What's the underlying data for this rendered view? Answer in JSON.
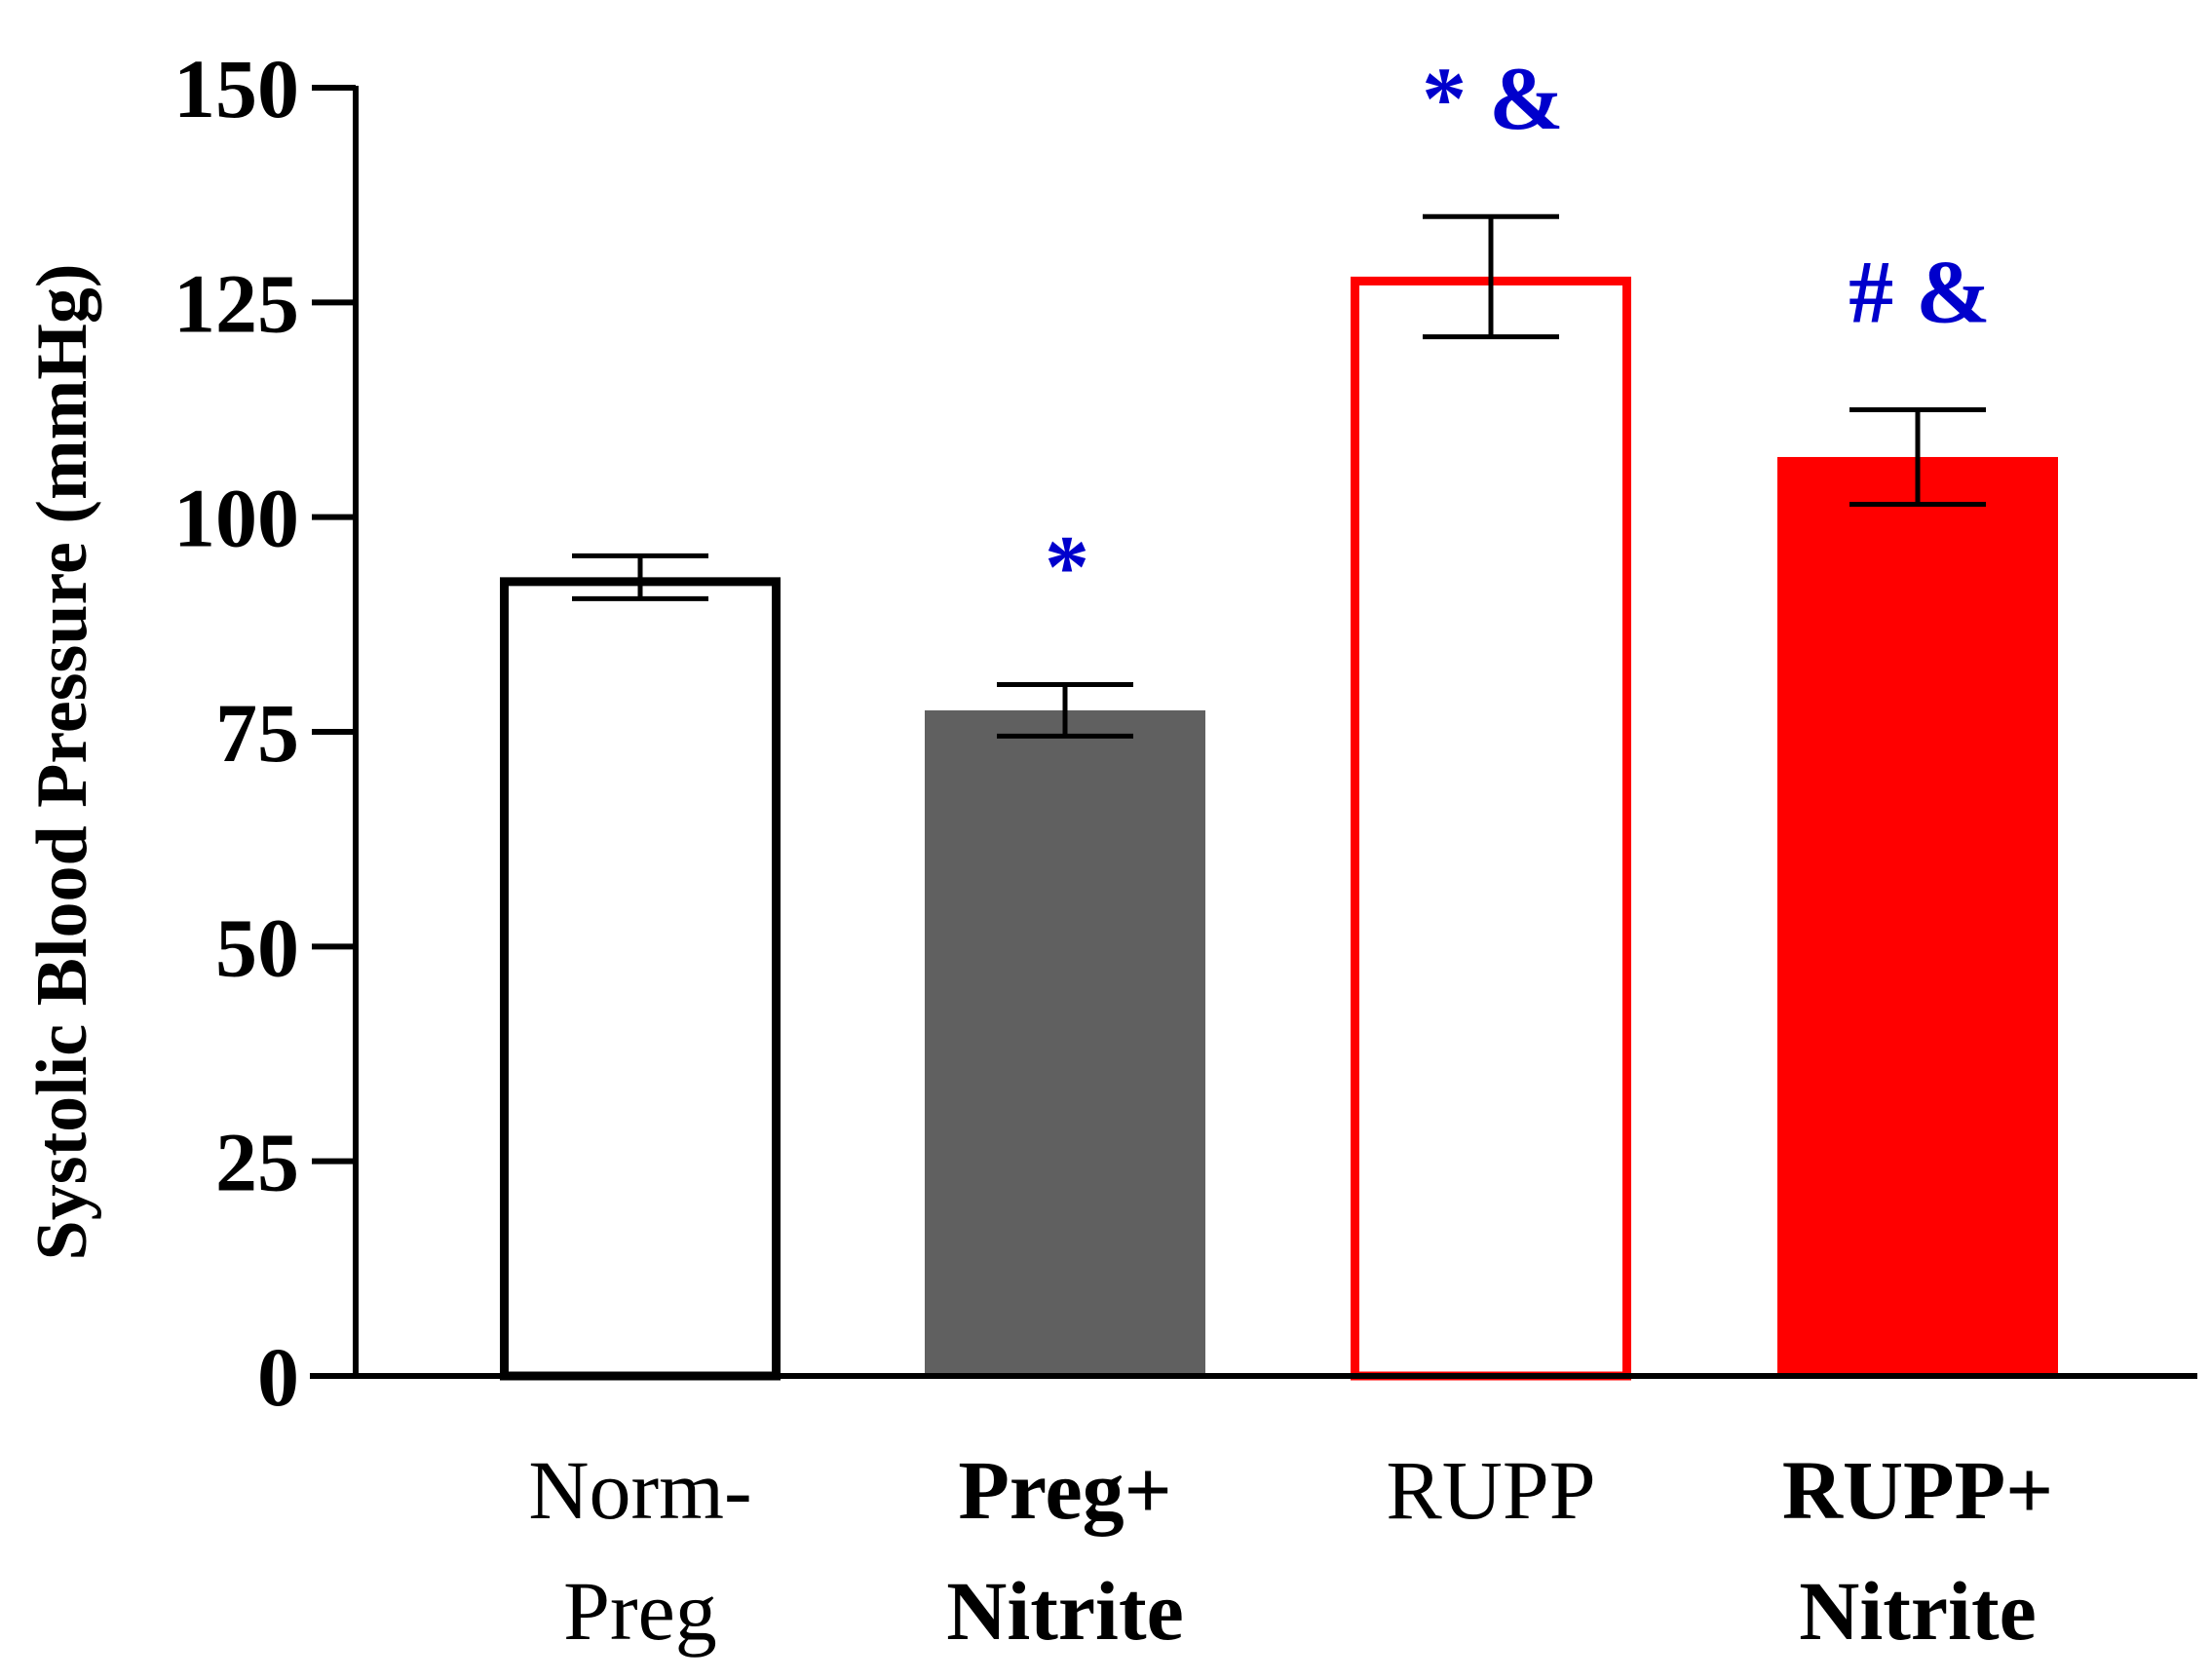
{
  "chart_data": {
    "type": "bar",
    "title": "",
    "xlabel": "",
    "ylabel": "Systolic Blood Pressure (mmHg)",
    "ylim": [
      0,
      150
    ],
    "yticks": [
      0,
      25,
      50,
      75,
      100,
      125,
      150
    ],
    "grid": false,
    "legend": "none",
    "categories": [
      {
        "lines": [
          "Norm-",
          "Preg"
        ],
        "bold": false
      },
      {
        "lines": [
          "Preg+",
          "Nitrite"
        ],
        "bold": true
      },
      {
        "lines": [
          "RUPP"
        ],
        "bold": false
      },
      {
        "lines": [
          "RUPP+",
          "Nitrite"
        ],
        "bold": true
      }
    ],
    "values": [
      93,
      77.5,
      128,
      107
    ],
    "errors": [
      2.5,
      3,
      7,
      5.5
    ],
    "bar_styles": [
      {
        "fill": "#ffffff",
        "stroke": "#000000"
      },
      {
        "fill": "#606060",
        "stroke": "none"
      },
      {
        "fill": "#ffffff",
        "stroke": "#ff0000"
      },
      {
        "fill": "#ff0000",
        "stroke": "none"
      }
    ],
    "annotations": [
      "",
      "*",
      "* &",
      "# &"
    ],
    "annotation_color": "#0000cc"
  }
}
